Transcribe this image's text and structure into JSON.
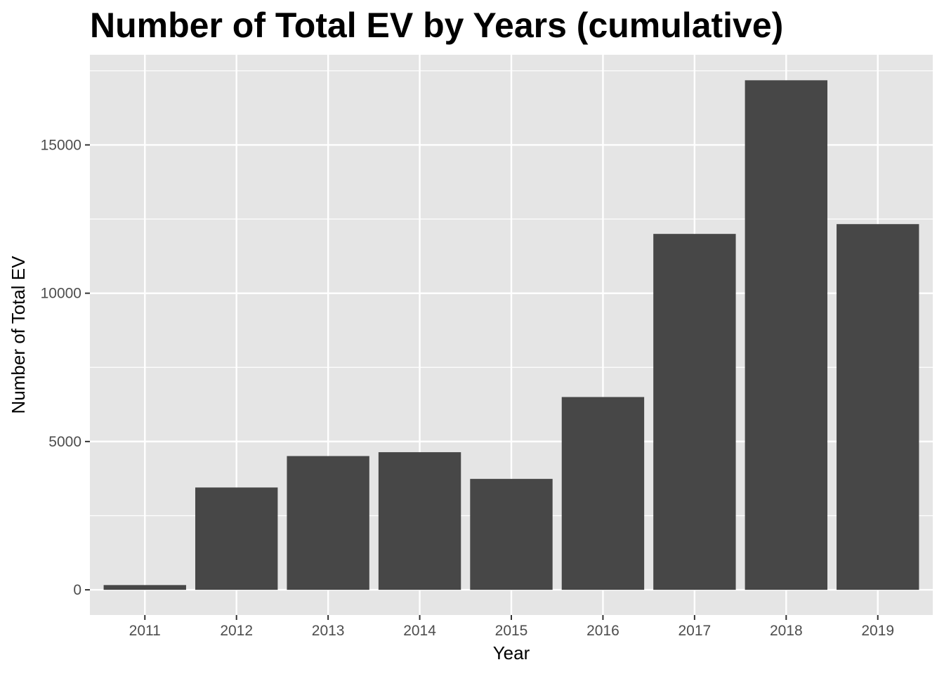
{
  "chart_data": {
    "type": "bar",
    "title": "Number of Total EV by Years (cumulative)",
    "xlabel": "Year",
    "ylabel": "Number of Total EV",
    "categories": [
      "2011",
      "2012",
      "2013",
      "2014",
      "2015",
      "2016",
      "2017",
      "2018",
      "2019"
    ],
    "values": [
      160,
      3450,
      4510,
      4640,
      3740,
      6500,
      12000,
      17180,
      12330
    ],
    "ylim": [
      -850,
      18040
    ],
    "yticks": [
      0,
      5000,
      10000,
      15000
    ],
    "ytick_labels": [
      "0",
      "5000",
      "10000",
      "15000"
    ],
    "grid": true,
    "legend": "none",
    "colors": {
      "bar": "#474747",
      "panel": "#e5e5e5",
      "grid": "#ffffff",
      "tick_text": "#4d4d4d",
      "tick_mark": "#333333"
    }
  }
}
